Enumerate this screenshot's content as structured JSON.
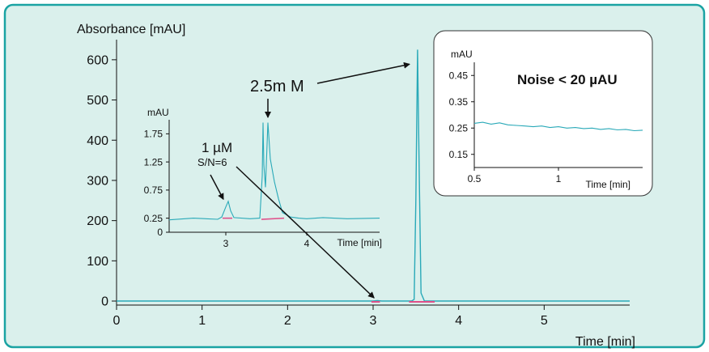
{
  "colors": {
    "frame": "#1aa3a3",
    "panel": "#daf0ec",
    "trace": "#29a9b8",
    "baseline_marker": "#e0508a",
    "axis": "#111111",
    "inset_background": "#ffffff"
  },
  "chart_data": [
    {
      "id": "main",
      "type": "line",
      "title": "",
      "xlabel": "Time [min]",
      "ylabel": "Absorbance [mAU]",
      "xlim": [
        0,
        6
      ],
      "ylim": [
        -10,
        650
      ],
      "x_ticks": [
        0,
        1,
        2,
        3,
        4,
        5
      ],
      "y_ticks": [
        0,
        100,
        200,
        300,
        400,
        500,
        600
      ],
      "series": [
        {
          "x": [
            0,
            2.9,
            3.0,
            3.05,
            3.1,
            3.4,
            3.45,
            3.48,
            3.5,
            3.52,
            3.54,
            3.56,
            3.6,
            4.0,
            6.0
          ],
          "y": [
            0,
            0,
            0,
            1,
            0,
            0,
            0,
            4,
            250,
            625,
            300,
            20,
            0,
            0,
            0
          ]
        }
      ],
      "annotations": [
        {
          "text": "2.5m M",
          "arrow_to_x": 3.52,
          "arrow_to_y": 605
        }
      ]
    },
    {
      "id": "zoom_inset",
      "type": "line",
      "title": "",
      "xlabel": "Time [min]",
      "ylabel": "mAU",
      "xlim": [
        2.3,
        4.9
      ],
      "ylim": [
        0,
        2.0
      ],
      "x_ticks": [
        3,
        4
      ],
      "y_ticks": [
        0,
        0.25,
        0.75,
        1.25,
        1.75
      ],
      "series": [
        {
          "x": [
            2.3,
            2.6,
            2.9,
            2.95,
            3.0,
            3.03,
            3.06,
            3.1,
            3.3,
            3.42,
            3.45,
            3.46,
            3.47,
            3.49,
            3.52,
            3.55,
            3.6,
            3.65,
            3.7,
            3.8,
            3.9,
            4.0,
            4.2,
            4.5,
            4.9
          ],
          "y": [
            0.22,
            0.25,
            0.23,
            0.27,
            0.45,
            0.55,
            0.38,
            0.26,
            0.24,
            0.25,
            1.0,
            1.95,
            1.2,
            0.8,
            1.95,
            1.3,
            0.9,
            0.6,
            0.35,
            0.27,
            0.25,
            0.24,
            0.26,
            0.24,
            0.25
          ]
        }
      ],
      "annotations": [
        {
          "text": "1 µM",
          "arrow_to_x": 3.0,
          "arrow_to_y": 0.5
        },
        {
          "text": "S/N=6",
          "arrow_to_x": 3.0,
          "arrow_to_y": 0.5
        }
      ]
    },
    {
      "id": "noise_inset",
      "type": "line",
      "title": "Noise < 20 µAU",
      "xlabel": "Time [min]",
      "ylabel": "mAU",
      "xlim": [
        0.5,
        1.5
      ],
      "ylim": [
        0.1,
        0.5
      ],
      "x_ticks": [
        0.5,
        1
      ],
      "y_ticks": [
        0.15,
        0.25,
        0.35,
        0.45
      ],
      "series": [
        {
          "x": [
            0.5,
            0.55,
            0.6,
            0.65,
            0.7,
            0.75,
            0.8,
            0.85,
            0.9,
            0.95,
            1.0,
            1.05,
            1.1,
            1.15,
            1.2,
            1.25,
            1.3,
            1.35,
            1.4,
            1.45,
            1.5
          ],
          "y": [
            0.268,
            0.272,
            0.265,
            0.27,
            0.262,
            0.26,
            0.258,
            0.255,
            0.258,
            0.252,
            0.255,
            0.25,
            0.252,
            0.248,
            0.25,
            0.245,
            0.248,
            0.243,
            0.245,
            0.24,
            0.242
          ]
        }
      ]
    }
  ]
}
